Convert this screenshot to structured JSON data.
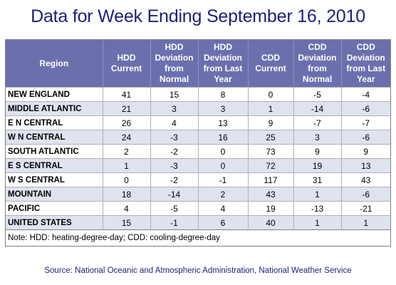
{
  "title": "Data for Week Ending September 16, 2010",
  "table": {
    "headers": {
      "region": "Region",
      "hdd_current": [
        "HDD",
        "Current"
      ],
      "hdd_dev_normal": [
        "HDD",
        "Deviation",
        "from",
        "Normal"
      ],
      "hdd_dev_last_year": [
        "HDD",
        "Deviation",
        "from Last",
        "Year"
      ],
      "cdd_current": [
        "CDD",
        "Current"
      ],
      "cdd_dev_normal": [
        "CDD",
        "Deviation",
        "from",
        "Normal"
      ],
      "cdd_dev_last_year": [
        "CDD",
        "Deviation",
        "from Last",
        "Year"
      ]
    },
    "rows": [
      [
        "NEW ENGLAND",
        "41",
        "15",
        "8",
        "0",
        "-5",
        "-4"
      ],
      [
        "MIDDLE ATLANTIC",
        "21",
        "3",
        "3",
        "1",
        "-14",
        "-6"
      ],
      [
        "E N CENTRAL",
        "26",
        "4",
        "13",
        "9",
        "-7",
        "-7"
      ],
      [
        "W N CENTRAL",
        "24",
        "-3",
        "16",
        "25",
        "3",
        "-6"
      ],
      [
        "SOUTH ATLANTIC",
        "2",
        "-2",
        "0",
        "73",
        "9",
        "9"
      ],
      [
        "E S CENTRAL",
        "1",
        "-3",
        "0",
        "72",
        "19",
        "13"
      ],
      [
        "W S CENTRAL",
        "0",
        "-2",
        "-1",
        "117",
        "31",
        "43"
      ],
      [
        "MOUNTAIN",
        "18",
        "-14",
        "2",
        "43",
        "1",
        "-6"
      ],
      [
        "PACIFIC",
        "4",
        "-5",
        "4",
        "19",
        "-13",
        "-21"
      ],
      [
        "UNITED STATES",
        "15",
        "-1",
        "6",
        "40",
        "1",
        "1"
      ]
    ],
    "note": "Note: HDD: heating-degree-day; CDD: cooling-degree-day"
  },
  "source": "Source:  National Oceanic and Atmospheric Administration, National Weather Service",
  "colors": {
    "title": "#1f1f7a",
    "header_bg": "#6b70ad",
    "alt_row_bg": "#dfe3ef"
  }
}
